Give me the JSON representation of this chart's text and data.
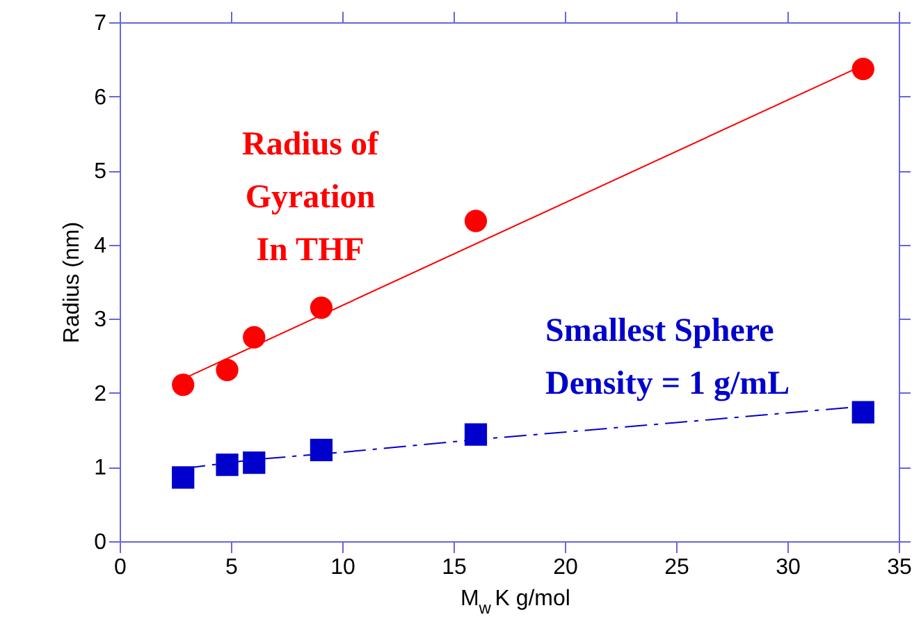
{
  "chart_data": {
    "type": "scatter",
    "xlabel": "M$_{w}$ K g/mol",
    "ylabel": "Radius (nm)",
    "xlim": [
      0,
      35
    ],
    "xticks": [
      0,
      5,
      10,
      15,
      20,
      25,
      30,
      35
    ],
    "ylim": [
      0,
      7
    ],
    "yticks": [
      0,
      1,
      2,
      3,
      4,
      5,
      6,
      7
    ],
    "grid": false,
    "series": [
      {
        "name": "Radius of\nGyration\nIn THF",
        "color": "#ff0000",
        "marker": "circle",
        "x": [
          2.85,
          4.83,
          6.04,
          9.06,
          16.0,
          33.4
        ],
        "values": [
          2.11,
          2.31,
          2.75,
          3.15,
          4.32,
          6.37
        ]
      },
      {
        "name": "Smallest Sphere\nDensity = 1 g/mL",
        "color": "#0000cc",
        "marker": "square",
        "x": [
          2.85,
          4.83,
          6.04,
          9.06,
          16.0,
          33.4
        ],
        "values": [
          0.86,
          1.03,
          1.06,
          1.23,
          1.44,
          1.74
        ]
      },
      {
        "type": "line",
        "color": "#ff0000",
        "line_style": "solid",
        "marker": "none",
        "x": [
          2.85,
          33.4
        ],
        "values": [
          2.19,
          6.42
        ]
      },
      {
        "type": "line",
        "color": "#0000cc",
        "line_style": "dashed",
        "marker": "none",
        "x": [
          2.85,
          6.0,
          10.0,
          16.0,
          25.0,
          33.4
        ],
        "values": [
          0.98,
          1.1,
          1.2,
          1.37,
          1.6,
          1.82
        ]
      }
    ]
  }
}
